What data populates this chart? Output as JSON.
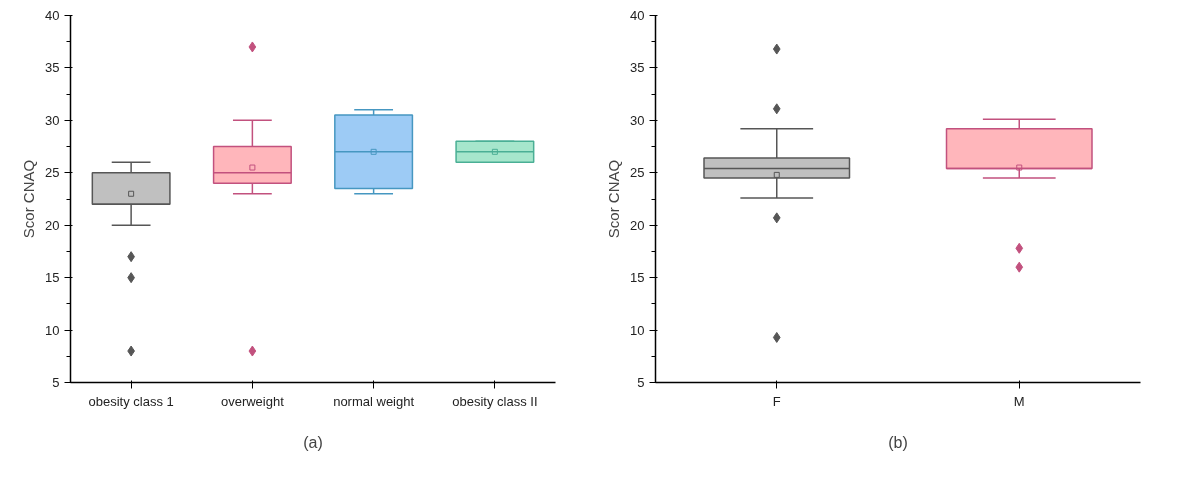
{
  "chart_data": [
    {
      "type": "box",
      "ylabel": "Scor CNAQ",
      "categories": [
        "obesity class 1",
        "overweight",
        "normal weight",
        "obesity class II"
      ],
      "boxes": [
        {
          "low": 20,
          "q1": 22,
          "median": 22,
          "q3": 25,
          "high": 26,
          "mean": 23,
          "outliers": [
            17,
            15,
            8
          ]
        },
        {
          "low": 23,
          "q1": 24,
          "median": 25,
          "q3": 27.5,
          "high": 30,
          "mean": 25.5,
          "outliers": [
            37,
            8
          ]
        },
        {
          "low": 23,
          "q1": 23.5,
          "median": 27,
          "q3": 30.5,
          "high": 31,
          "mean": 27
        },
        {
          "low": 26,
          "q1": 26,
          "median": 27,
          "q3": 28,
          "high": 28,
          "mean": 27
        }
      ],
      "colors": [
        "#c0c0c0",
        "#ffb6bb",
        "#9dcbf5",
        "#a6e6cc"
      ],
      "ylim": [
        5,
        40
      ],
      "yticks": [
        5,
        10,
        15,
        20,
        25,
        30,
        35,
        40
      ],
      "grid": false,
      "marker": "diamond",
      "annotations": [
        "(a)"
      ]
    },
    {
      "type": "box",
      "ylabel": "Scor CNAQ",
      "categories": [
        "F",
        "M"
      ],
      "boxes": [
        {
          "low": 22.6,
          "q1": 24.5,
          "median": 25.4,
          "q3": 26.4,
          "high": 29.2,
          "mean": 24.8,
          "outliers": [
            36.8,
            31.1,
            20.7,
            9.3
          ]
        },
        {
          "low": 24.5,
          "q1": 25.4,
          "median": 25.4,
          "q3": 29.2,
          "high": 30.1,
          "mean": 25.5,
          "outliers": [
            17.8,
            16.0
          ]
        }
      ],
      "colors": [
        "#c0c0c0",
        "#ffb6bb"
      ],
      "ylim": [
        5,
        40
      ],
      "yticks": [
        5,
        10,
        15,
        20,
        25,
        30,
        35,
        40
      ],
      "grid": false,
      "marker": "diamond",
      "annotations": [
        "(b)"
      ]
    }
  ]
}
